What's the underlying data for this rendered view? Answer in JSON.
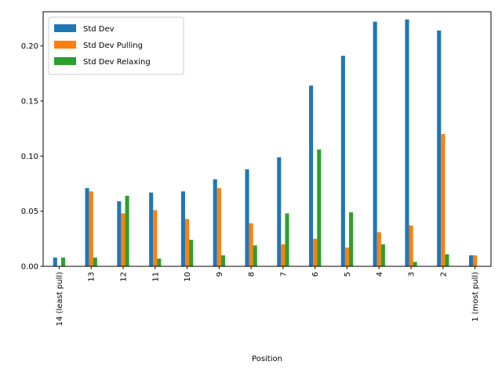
{
  "chart_data": {
    "type": "bar",
    "title": "",
    "xlabel": "Position",
    "ylabel": "",
    "ylim": [
      0,
      0.231
    ],
    "yticks": [
      "0.00",
      "0.05",
      "0.10",
      "0.15",
      "0.20"
    ],
    "ytick_values": [
      0,
      0.05,
      0.1,
      0.15,
      0.2
    ],
    "grid": false,
    "legend_position": "top-left",
    "categories": [
      "14 (least pull)",
      "13",
      "12",
      "11",
      "10",
      "9",
      "8",
      "7",
      "6",
      "5",
      "4",
      "3",
      "2",
      "1 (most pull)"
    ],
    "series": [
      {
        "name": "Std Dev",
        "color": "#1f77b4",
        "values": [
          0.008,
          0.071,
          0.059,
          0.067,
          0.068,
          0.079,
          0.088,
          0.099,
          0.164,
          0.191,
          0.222,
          0.224,
          0.214,
          0.01
        ]
      },
      {
        "name": "Std Dev Pulling",
        "color": "#ff7f0e",
        "values": [
          0.0,
          0.068,
          0.048,
          0.051,
          0.043,
          0.071,
          0.039,
          0.02,
          0.025,
          0.017,
          0.031,
          0.037,
          0.12,
          0.01
        ]
      },
      {
        "name": "Std Dev Relaxing",
        "color": "#2ca02c",
        "values": [
          0.008,
          0.008,
          0.064,
          0.007,
          0.024,
          0.01,
          0.019,
          0.048,
          0.106,
          0.049,
          0.02,
          0.004,
          0.011,
          0.0
        ]
      }
    ]
  }
}
